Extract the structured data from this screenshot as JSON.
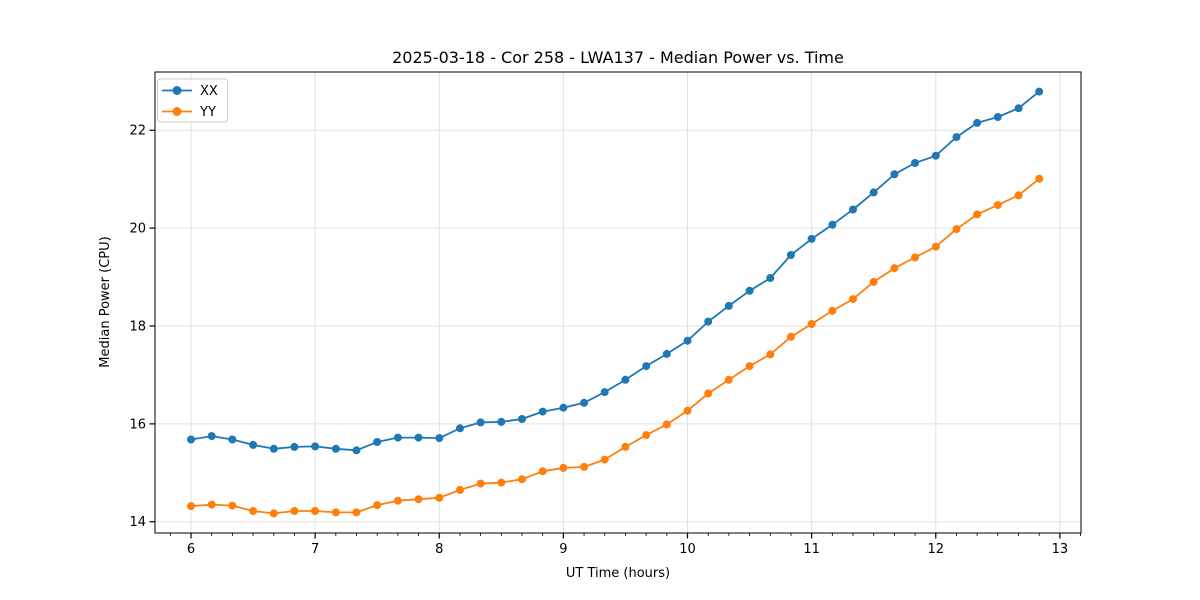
{
  "chart_data": {
    "type": "line",
    "title": "2025-03-18 - Cor 258 - LWA137 - Median Power vs. Time",
    "xlabel": "UT Time (hours)",
    "ylabel": "Median Power (CPU)",
    "x": [
      6.0,
      6.167,
      6.333,
      6.5,
      6.667,
      6.833,
      7.0,
      7.167,
      7.333,
      7.5,
      7.667,
      7.833,
      8.0,
      8.167,
      8.333,
      8.5,
      8.667,
      8.833,
      9.0,
      9.167,
      9.333,
      9.5,
      9.667,
      9.833,
      10.0,
      10.167,
      10.333,
      10.5,
      10.667,
      10.833,
      11.0,
      11.167,
      11.333,
      11.5,
      11.667,
      11.833,
      12.0,
      12.167,
      12.333,
      12.5,
      12.667,
      12.833
    ],
    "series": [
      {
        "name": "XX",
        "color": "#1f77b4",
        "values": [
          15.68,
          15.75,
          15.68,
          15.57,
          15.49,
          15.53,
          15.54,
          15.49,
          15.46,
          15.63,
          15.72,
          15.72,
          15.71,
          15.91,
          16.03,
          16.04,
          16.1,
          16.25,
          16.33,
          16.43,
          16.65,
          16.9,
          17.18,
          17.43,
          17.7,
          18.09,
          18.41,
          18.72,
          18.98,
          19.45,
          19.78,
          20.07,
          20.38,
          20.73,
          21.1,
          21.33,
          21.48,
          21.86,
          22.15,
          22.27,
          22.45,
          22.79
        ]
      },
      {
        "name": "YY",
        "color": "#ff7f0e",
        "values": [
          14.32,
          14.35,
          14.33,
          14.22,
          14.17,
          14.22,
          14.22,
          14.19,
          14.19,
          14.34,
          14.43,
          14.46,
          14.49,
          14.65,
          14.78,
          14.8,
          14.87,
          15.03,
          15.1,
          15.12,
          15.27,
          15.53,
          15.77,
          15.99,
          16.27,
          16.62,
          16.9,
          17.18,
          17.42,
          17.78,
          18.04,
          18.31,
          18.55,
          18.9,
          19.18,
          19.4,
          19.62,
          19.98,
          20.28,
          20.47,
          20.67,
          21.01
        ]
      }
    ],
    "xlim": [
      5.71,
      13.17
    ],
    "ylim": [
      13.77,
      23.19
    ],
    "xticks": [
      6,
      7,
      8,
      9,
      10,
      11,
      12,
      13
    ],
    "xtick_labels": [
      "6",
      "7",
      "8",
      "9",
      "10",
      "11",
      "12",
      "13"
    ],
    "yticks": [
      14,
      16,
      18,
      20,
      22
    ],
    "ytick_labels": [
      "14",
      "16",
      "18",
      "20",
      "22"
    ],
    "x_minor_interval": 0.166667,
    "grid": true,
    "grid_color": "#e0e0e0",
    "axis_color": "#000000",
    "legend_position": "upper-left",
    "marker": "circle",
    "marker_radius": 4,
    "line_width": 1.8
  }
}
